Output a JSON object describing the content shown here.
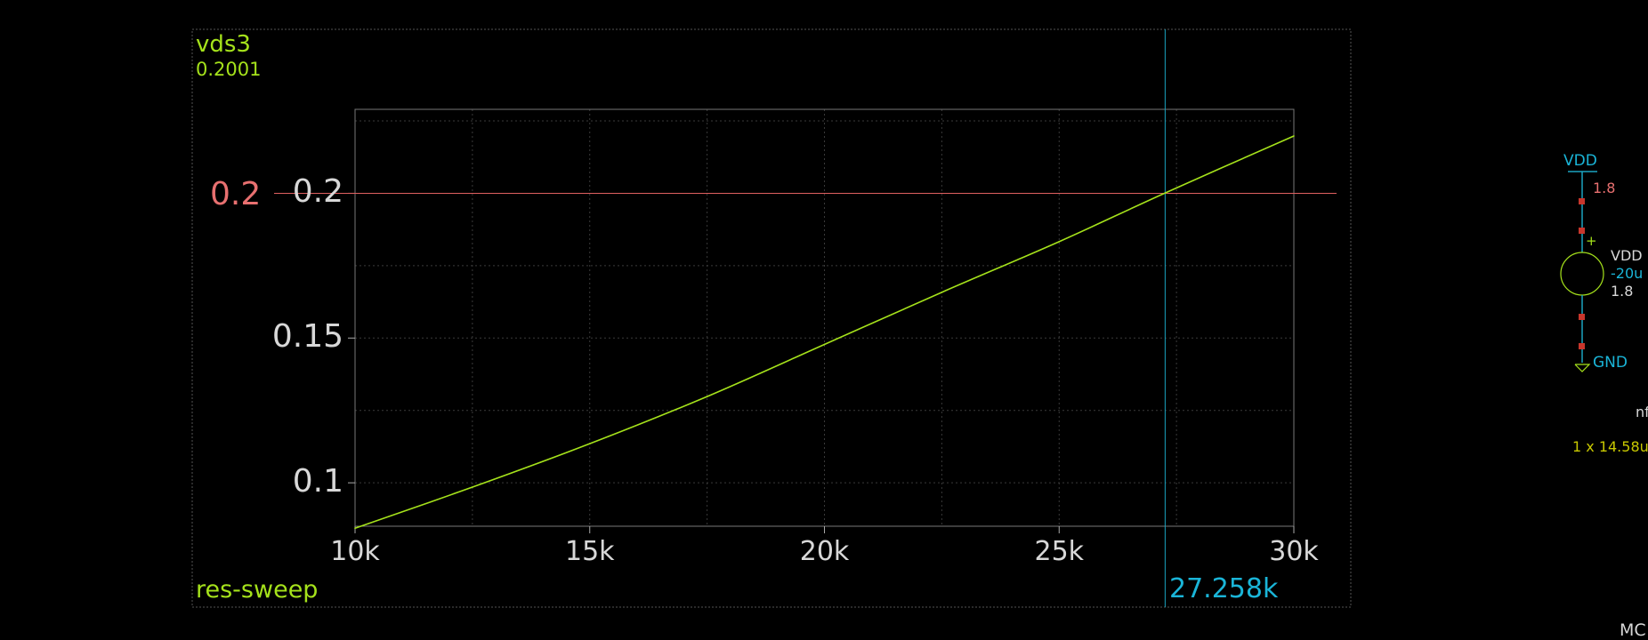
{
  "plot": {
    "signal_name": "vds3",
    "cursor_y_value": "0.2001",
    "x_variable_label": "res-sweep",
    "hline_label": "0.2",
    "cursor_x_label": "27.258k"
  },
  "chart_data": {
    "type": "line",
    "xlim": [
      10000,
      30000
    ],
    "ylim": [
      0.085,
      0.229
    ],
    "x_ticks": [
      10000,
      15000,
      20000,
      25000,
      30000
    ],
    "x_tick_labels": [
      "10k",
      "15k",
      "20k",
      "25k",
      "30k"
    ],
    "y_ticks": [
      0.1,
      0.15,
      0.2
    ],
    "y_tick_labels": [
      "0.1",
      "0.15",
      "0.2"
    ],
    "grid": true,
    "series": [
      {
        "color": "#a5e21b",
        "x": [
          10000,
          12500,
          15000,
          17500,
          20000,
          22500,
          25000,
          27258,
          30000
        ],
        "y": [
          0.0843,
          0.0985,
          0.1135,
          0.1298,
          0.1478,
          0.1658,
          0.1833,
          0.2001,
          0.2198
        ]
      }
    ],
    "hline": {
      "y": 0.2,
      "color": "#e06060"
    },
    "cursor": {
      "x": 27258,
      "color": "#1aa3c0"
    }
  },
  "schematic": {
    "vdd_top_label": "VDD",
    "vdd_voltage": "1.8",
    "source_name": "VDD",
    "source_current": "-20u",
    "source_value": "1.8",
    "gnd_label": "GND",
    "plus_sign": "+",
    "partial_device_label": "nf",
    "device_size": "1 x 14.58u",
    "bottom_label": "MC"
  },
  "colors": {
    "background": "#000000",
    "trace": "#a5e21b",
    "cursor": "#1aa3c0",
    "hline": "#e06060",
    "text": "#d8d8d8",
    "wire": "#1aa3c0",
    "pin": "#c8362c",
    "device": "#c8c800"
  }
}
